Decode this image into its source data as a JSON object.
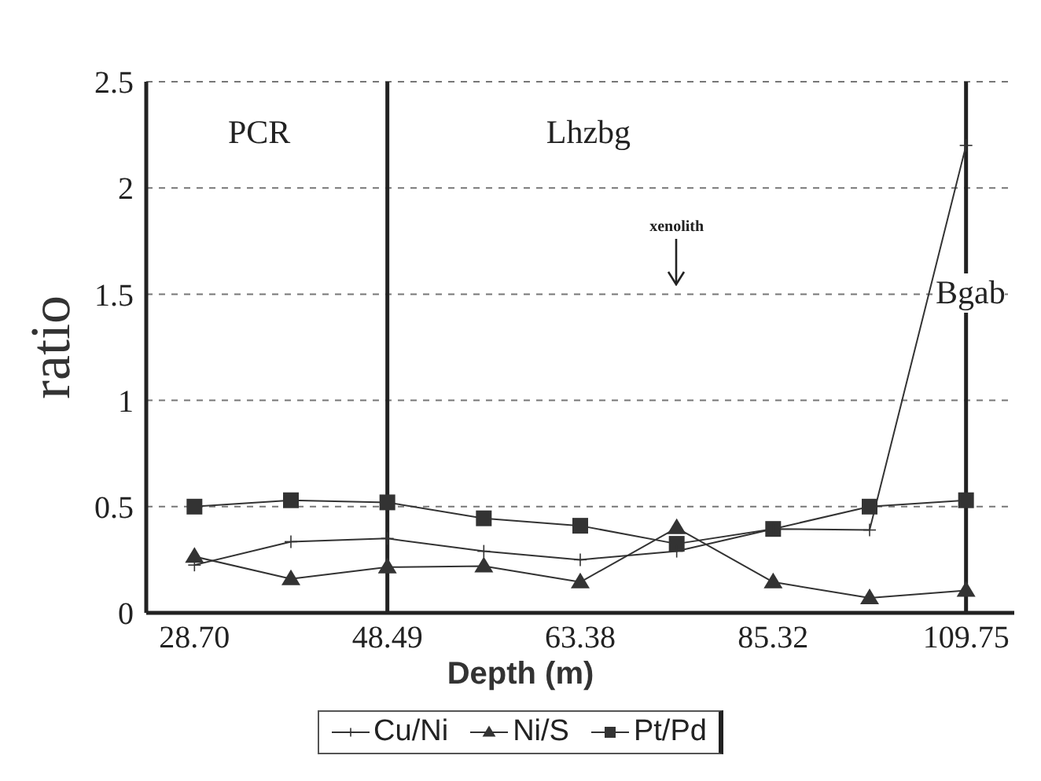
{
  "chart_data": {
    "type": "line",
    "xlabel": "Depth (m)",
    "ylabel": "ratio",
    "categories": [
      "28.70",
      null,
      "48.49",
      null,
      "63.38",
      null,
      "85.32",
      null,
      "109.75"
    ],
    "series": [
      {
        "name": "Cu/Ni",
        "color": "#333333",
        "marker": "cross",
        "values": [
          0.225,
          0.335,
          0.35,
          0.29,
          0.25,
          0.29,
          0.395,
          0.39,
          2.2
        ]
      },
      {
        "name": "Ni/S",
        "color": "#333333",
        "marker": "triangle",
        "values": [
          0.265,
          0.16,
          0.215,
          0.22,
          0.145,
          0.4,
          0.145,
          0.07,
          0.105
        ]
      },
      {
        "name": "Pt/Pd",
        "color": "#333333",
        "marker": "square",
        "values": [
          0.5,
          0.53,
          0.52,
          0.445,
          0.41,
          0.325,
          0.395,
          0.5,
          0.53
        ]
      }
    ],
    "ylim": [
      0,
      2.5
    ],
    "yticks": [
      0,
      0.5,
      1,
      1.5,
      2,
      2.5
    ],
    "grid": "y",
    "legend": "bottom",
    "line_style": "solid",
    "ref_lines": [
      {
        "axis": "x",
        "value": "48.49",
        "label": null
      },
      {
        "axis": "x",
        "value": "109.75",
        "label": null
      }
    ],
    "annotations": [
      "PCR",
      "Lhzbg",
      "Bgab",
      "xenolith"
    ]
  }
}
